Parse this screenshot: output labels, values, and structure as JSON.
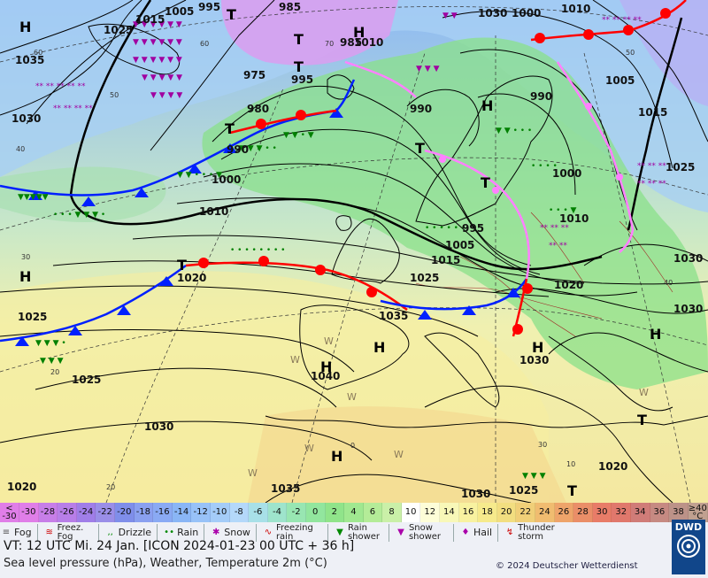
{
  "map": {
    "pressure_labels": [
      "1005",
      "995",
      "985",
      "1015",
      "1025",
      "1035",
      "1030",
      "990",
      "1000",
      "1010",
      "975",
      "980",
      "990",
      "1000",
      "1010",
      "985",
      "995",
      "1005",
      "1015",
      "1020",
      "1025",
      "1030",
      "1035",
      "1040",
      "1030",
      "1025",
      "1020",
      "1030",
      "1035",
      "1030",
      "1025",
      "1020",
      "1000",
      "1010",
      "1015",
      "1005",
      "1025",
      "990",
      "995",
      "1010",
      "1030",
      "1020",
      "1025",
      "1030"
    ],
    "pressure_center_H": "H",
    "pressure_center_T": "T",
    "weather_W": "W",
    "small_values": [
      "60",
      "50",
      "40",
      "30",
      "20",
      "70",
      "60",
      "50",
      "40",
      "30",
      "20",
      "10",
      "0"
    ],
    "colors": {
      "sea_cold": "#a8c8f0",
      "warm": "#f4efa8",
      "rain_green": "#7ed87e",
      "snow_violet": "#c890f0",
      "warm_front": "#ff0000",
      "cold_front": "#0020ff",
      "occlusion": "#ff80ff",
      "isobar": "#000000"
    }
  },
  "temperature_scale": {
    "low_label_top": "<",
    "low_label_bottom": "-30",
    "values": [
      "-30",
      "-28",
      "-26",
      "-24",
      "-22",
      "-20",
      "-18",
      "-16",
      "-14",
      "-12",
      "-10",
      "-8",
      "-6",
      "-4",
      "-2",
      "0",
      "2",
      "4",
      "6",
      "8",
      "10",
      "12",
      "14",
      "16",
      "18",
      "20",
      "22",
      "24",
      "26",
      "28",
      "30",
      "32",
      "34",
      "36",
      "38"
    ],
    "colors": [
      "#e07ee8",
      "#c77ee8",
      "#b87ee8",
      "#a07ee8",
      "#9a8ee8",
      "#7f8eea",
      "#8aa0f0",
      "#8aaaf4",
      "#8ab6f6",
      "#98c2f8",
      "#a4ccf8",
      "#b4d8fa",
      "#a8e0e8",
      "#9ee4cc",
      "#98e6b2",
      "#92e69e",
      "#90e48a",
      "#a0e890",
      "#b4ec98",
      "#caf0a8",
      "#ffffff",
      "#fdfdd8",
      "#f8f8b8",
      "#f8f2a0",
      "#f6ea8c",
      "#f2de80",
      "#f0cf78",
      "#f0bc70",
      "#eea46a",
      "#ea8e68",
      "#e87c68",
      "#e0786c",
      "#d07c78",
      "#c68a82",
      "#bc9288"
    ],
    "high_label_top": "≥40",
    "high_label_bottom": "°C"
  },
  "symbols": [
    {
      "icon": "fog",
      "label": "Fog"
    },
    {
      "icon": "freezing-fog",
      "label": "Freez. Fog"
    },
    {
      "icon": "drizzle",
      "label": "Drizzle"
    },
    {
      "icon": "rain",
      "label": "Rain"
    },
    {
      "icon": "snow",
      "label": "Snow"
    },
    {
      "icon": "freezing-rain",
      "label": "Freezing rain"
    },
    {
      "icon": "rain-shower",
      "label": "Rain shower"
    },
    {
      "icon": "snow-shower",
      "label": "Snow shower"
    },
    {
      "icon": "hail",
      "label": "Hail"
    },
    {
      "icon": "thunderstorm",
      "label": "Thunder storm"
    }
  ],
  "footer": {
    "valid_time": "VT: 12 UTC Mi.   24 Jan. [ICON 2024-01-23  00 UTC + 36 h]",
    "description": "Sea level pressure (hPa), Weather, Temperature 2m (°C)",
    "copyright": "© 2024 Deutscher Wetterdienst",
    "logo_text": "DWD"
  }
}
